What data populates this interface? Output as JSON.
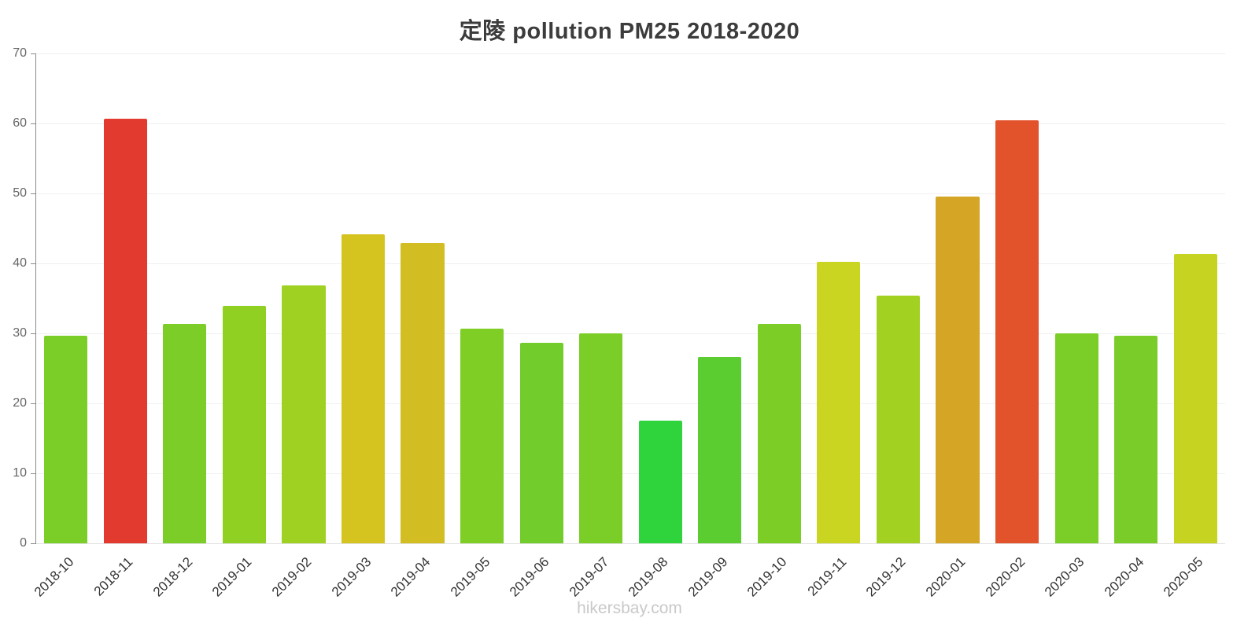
{
  "title": "定陵 pollution PM25 2018-2020",
  "footer": "hikersbay.com",
  "chart_data": {
    "type": "bar",
    "title": "定陵 pollution PM25 2018-2020",
    "xlabel": "",
    "ylabel": "",
    "ylim": [
      0,
      70
    ],
    "yticks": [
      0,
      10,
      20,
      30,
      40,
      50,
      60,
      70
    ],
    "grid": true,
    "legend": false,
    "x_label_rotation": -45,
    "categories": [
      "2018-10",
      "2018-11",
      "2018-12",
      "2019-01",
      "2019-02",
      "2019-03",
      "2019-04",
      "2019-05",
      "2019-06",
      "2019-07",
      "2019-08",
      "2019-09",
      "2019-10",
      "2019-11",
      "2019-12",
      "2020-01",
      "2020-02",
      "2020-03",
      "2020-04",
      "2020-05"
    ],
    "values": [
      29.7,
      60.7,
      31.3,
      33.9,
      36.9,
      44.2,
      42.9,
      30.7,
      28.6,
      30.0,
      17.5,
      26.6,
      31.3,
      40.2,
      35.4,
      49.5,
      60.4,
      30.0,
      29.7,
      41.3
    ],
    "colors": [
      "#7bce27",
      "#e23a2e",
      "#7ccd28",
      "#90d023",
      "#9ed122",
      "#d5c320",
      "#d2bd23",
      "#7fce26",
      "#72cc2b",
      "#7bce27",
      "#2fd43d",
      "#5bcd31",
      "#7cce27",
      "#c9d520",
      "#a3d122",
      "#d5a626",
      "#e2532c",
      "#7bce27",
      "#7acd28",
      "#c6d421"
    ],
    "axis_color": "#8a8a8a",
    "grid_color": "#f0f0f0"
  }
}
